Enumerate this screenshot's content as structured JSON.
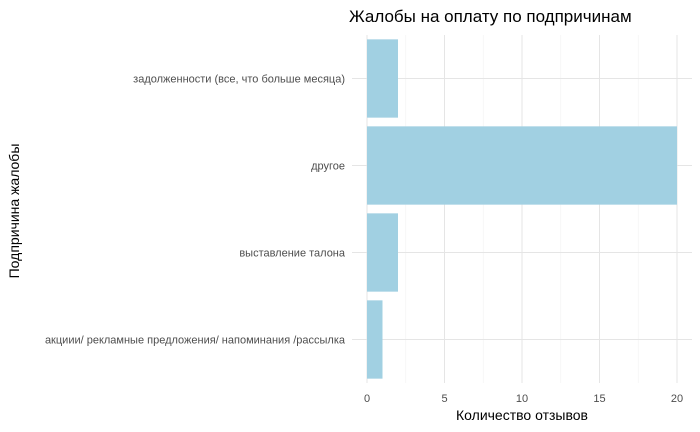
{
  "chart_data": {
    "type": "bar",
    "orientation": "horizontal",
    "title": "Жалобы на оплату по подпричинам",
    "xlabel": "Количество отзывов",
    "ylabel": "Подпричина жалобы",
    "categories": [
      "задолженности (все, что больше месяца)",
      "другое",
      "выставление талона",
      "акциии/ рекламные предложения/ напоминания /рассылка"
    ],
    "values": [
      2,
      20,
      2,
      1
    ],
    "xlim": [
      0,
      20
    ],
    "xticks": [
      "0",
      "5",
      "10",
      "15",
      "20"
    ],
    "grid": true,
    "colors": {
      "bar": "#a1d0e2",
      "grid_major": "#e5e5e5",
      "grid_minor": "#f2f2f2"
    }
  }
}
